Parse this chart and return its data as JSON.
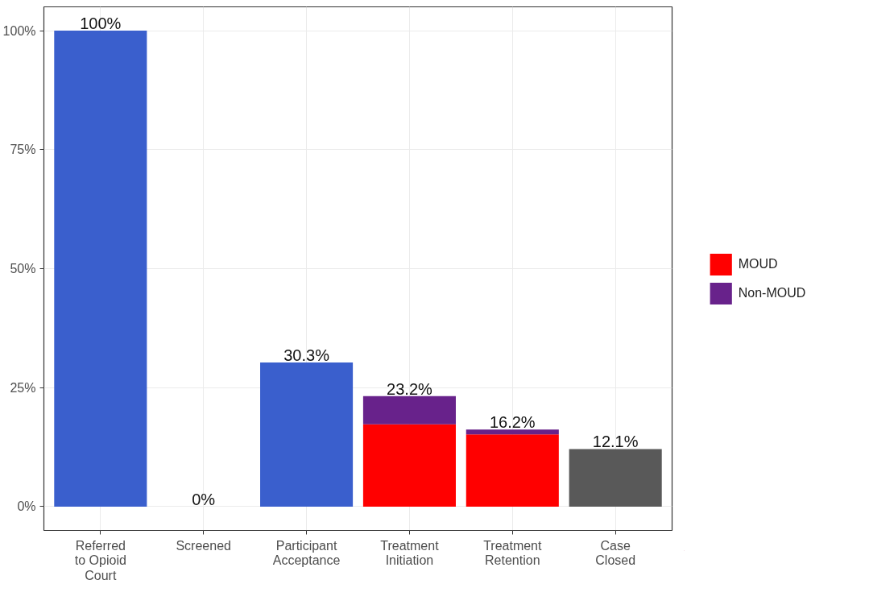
{
  "chart_data": {
    "type": "bar",
    "stacked": true,
    "categories": [
      "Referred\nto Opioid\nCourt",
      "Screened",
      "Participant\nAcceptance",
      "Treatment\nInitiation",
      "Treatment\nRetention",
      "Case\nClosed"
    ],
    "series": [
      {
        "color": "#3a5fcd",
        "values": [
          100,
          0,
          30.3,
          null,
          null,
          null
        ]
      },
      {
        "name": "MOUD",
        "color": "#ff0000",
        "values": [
          null,
          null,
          null,
          17.3,
          15.2,
          null
        ]
      },
      {
        "name": "Non-MOUD",
        "color": "#68228b",
        "values": [
          null,
          null,
          null,
          5.9,
          1.0,
          null
        ]
      },
      {
        "color": "#595959",
        "values": [
          null,
          null,
          null,
          null,
          null,
          12.1
        ]
      }
    ],
    "totals": [
      "100%",
      "0%",
      "30.3%",
      "23.2%",
      "16.2%",
      "12.1%"
    ],
    "ylim": [
      -5,
      105
    ],
    "yticks": [
      {
        "value": 0,
        "label": "0%"
      },
      {
        "value": 25,
        "label": "25%"
      },
      {
        "value": 50,
        "label": "50%"
      },
      {
        "value": 75,
        "label": "75%"
      },
      {
        "value": 100,
        "label": "100%"
      }
    ],
    "grid": true,
    "legend": "right"
  }
}
